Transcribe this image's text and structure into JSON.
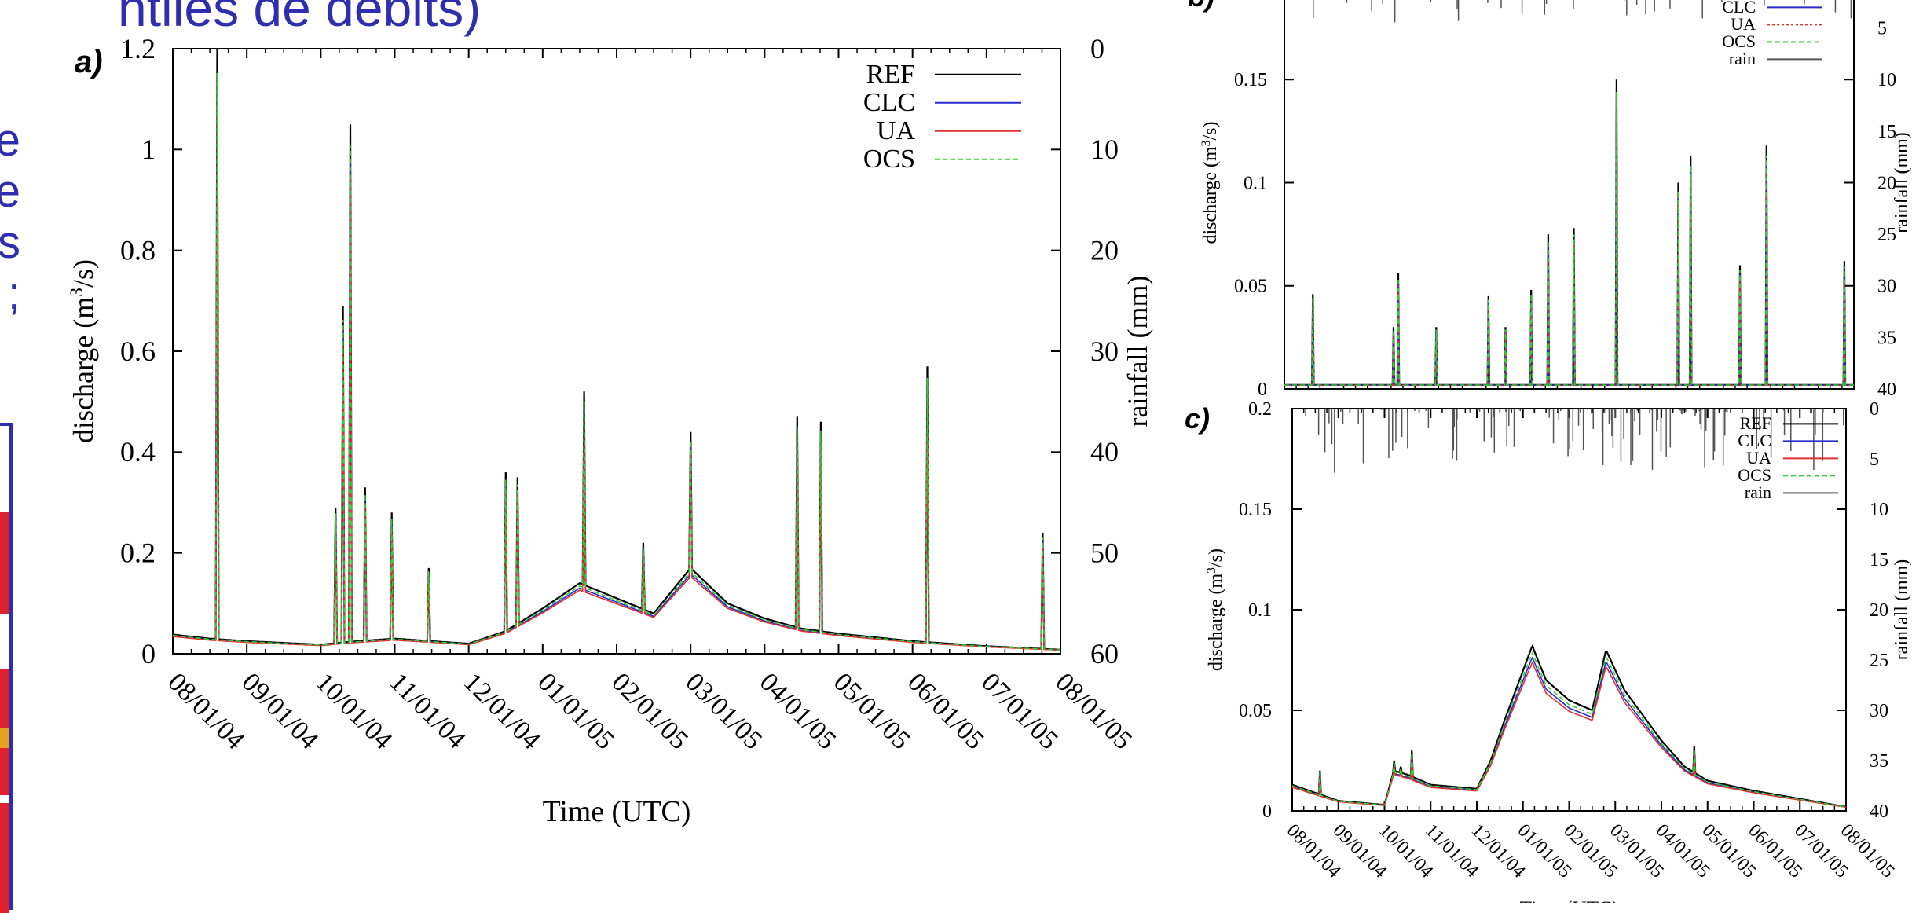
{
  "slide": {
    "title": "ntiles de débits)",
    "side_text": [
      "e",
      "e",
      "s",
      ";"
    ]
  },
  "colors": {
    "REF": "#000000",
    "CLC": "#2a2ad0",
    "UA": "#e03030",
    "OCS": "#30d030",
    "rain": "#555555",
    "slide_text": "#2e2eb0",
    "table_red": "#e0202a",
    "table_orange": "#e8a020"
  },
  "chart_data": [
    {
      "panel": "a)",
      "type": "line",
      "xlabel": "Time (UTC)",
      "ylabel": "discharge (m³/s)",
      "y2label": "rainfall (mm)",
      "x_ticks": [
        "08/01/04",
        "09/01/04",
        "10/01/04",
        "11/01/04",
        "12/01/04",
        "01/01/05",
        "02/01/05",
        "03/01/05",
        "04/01/05",
        "05/01/05",
        "06/01/05",
        "07/01/05",
        "08/01/05"
      ],
      "y_ticks": [
        "0",
        "0.2",
        "0.4",
        "0.6",
        "0.8",
        "1",
        "1.2"
      ],
      "y2_ticks": [
        "0",
        "10",
        "20",
        "30",
        "40",
        "50",
        "60"
      ],
      "ylim": [
        0,
        1.2
      ],
      "y2lim": [
        60,
        0
      ],
      "legend": [
        "REF",
        "CLC",
        "UA",
        "OCS"
      ],
      "legend_position": "top-right",
      "series_baseline": [
        [
          0,
          0.038
        ],
        [
          0.5,
          0.03
        ],
        [
          1,
          0.025
        ],
        [
          2,
          0.018
        ],
        [
          2.5,
          0.025
        ],
        [
          3,
          0.03
        ],
        [
          4,
          0.02
        ],
        [
          4.5,
          0.045
        ],
        [
          5,
          0.09
        ],
        [
          5.5,
          0.14
        ],
        [
          6,
          0.11
        ],
        [
          6.5,
          0.08
        ],
        [
          7,
          0.17
        ],
        [
          7.5,
          0.1
        ],
        [
          8,
          0.07
        ],
        [
          8.5,
          0.05
        ],
        [
          9,
          0.04
        ],
        [
          10,
          0.025
        ],
        [
          11,
          0.015
        ],
        [
          12,
          0.008
        ]
      ],
      "peaks": [
        [
          0.6,
          1.2
        ],
        [
          2.2,
          0.29
        ],
        [
          2.3,
          0.69
        ],
        [
          2.4,
          1.05
        ],
        [
          2.6,
          0.33
        ],
        [
          2.95,
          0.28
        ],
        [
          3.45,
          0.17
        ],
        [
          4.5,
          0.36
        ],
        [
          4.65,
          0.35
        ],
        [
          5.55,
          0.52
        ],
        [
          6.35,
          0.22
        ],
        [
          7.0,
          0.44
        ],
        [
          8.45,
          0.47
        ],
        [
          8.75,
          0.46
        ],
        [
          10.2,
          0.57
        ],
        [
          11.75,
          0.24
        ]
      ]
    },
    {
      "panel": "b)",
      "type": "line",
      "ylabel": "discharge (m³/s)",
      "y2label": "rainfall (mm)",
      "y_ticks": [
        "0",
        "0.05",
        "0.1",
        "0.15"
      ],
      "y2_ticks": [
        "5",
        "10",
        "15",
        "20",
        "25",
        "30",
        "35",
        "40"
      ],
      "ylim": [
        0,
        0.2
      ],
      "y2lim": [
        40,
        0
      ],
      "legend": [
        "CLC",
        "UA",
        "OCS",
        "rain"
      ],
      "legend_position": "top-right",
      "peaks": [
        [
          0.6,
          0.046
        ],
        [
          2.3,
          0.03
        ],
        [
          2.4,
          0.056
        ],
        [
          3.2,
          0.03
        ],
        [
          4.3,
          0.045
        ],
        [
          4.65,
          0.03
        ],
        [
          5.2,
          0.048
        ],
        [
          5.55,
          0.075
        ],
        [
          6.1,
          0.078
        ],
        [
          7.0,
          0.15
        ],
        [
          8.3,
          0.1
        ],
        [
          8.55,
          0.113
        ],
        [
          9.6,
          0.06
        ],
        [
          10.15,
          0.118
        ],
        [
          11.8,
          0.062
        ]
      ]
    },
    {
      "panel": "c)",
      "type": "line",
      "xlabel": "Time (UTC)",
      "ylabel": "discharge (m³/s)",
      "y2label": "rainfall (mm)",
      "x_ticks": [
        "08/01/04",
        "09/01/04",
        "10/01/04",
        "11/01/04",
        "12/01/04",
        "01/01/05",
        "02/01/05",
        "03/01/05",
        "04/01/05",
        "05/01/05",
        "06/01/05",
        "07/01/05",
        "08/01/05"
      ],
      "y_ticks": [
        "0",
        "0.05",
        "0.1",
        "0.15",
        "0.2"
      ],
      "y2_ticks": [
        "0",
        "5",
        "10",
        "15",
        "20",
        "25",
        "30",
        "35",
        "40"
      ],
      "ylim": [
        0,
        0.2
      ],
      "y2lim": [
        40,
        0
      ],
      "legend": [
        "REF",
        "CLC",
        "UA",
        "OCS",
        "rain"
      ],
      "legend_position": "top-right",
      "series_ref": [
        [
          0,
          0.013
        ],
        [
          0.5,
          0.009
        ],
        [
          1,
          0.005
        ],
        [
          2,
          0.003
        ],
        [
          2.2,
          0.02
        ],
        [
          2.5,
          0.018
        ],
        [
          3,
          0.013
        ],
        [
          4,
          0.011
        ],
        [
          4.3,
          0.025
        ],
        [
          4.6,
          0.045
        ],
        [
          5.2,
          0.082
        ],
        [
          5.5,
          0.065
        ],
        [
          6,
          0.055
        ],
        [
          6.5,
          0.05
        ],
        [
          6.8,
          0.08
        ],
        [
          7.2,
          0.06
        ],
        [
          8,
          0.035
        ],
        [
          8.5,
          0.022
        ],
        [
          9,
          0.015
        ],
        [
          10,
          0.01
        ],
        [
          11,
          0.006
        ],
        [
          12,
          0.002
        ]
      ]
    }
  ]
}
